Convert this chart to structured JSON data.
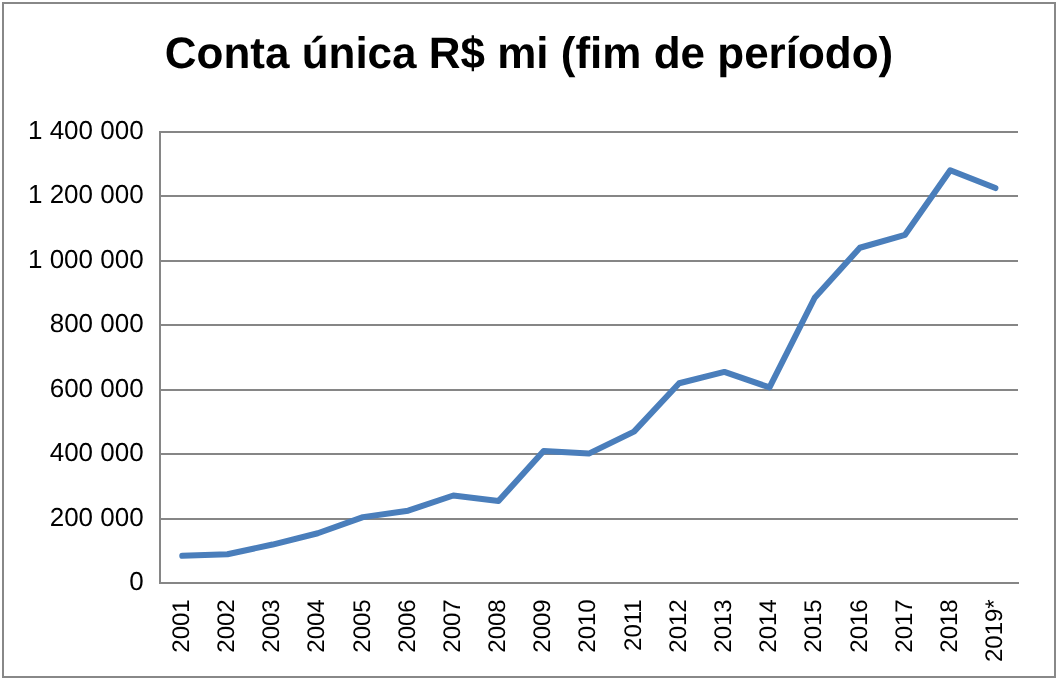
{
  "chart_data": {
    "type": "line",
    "title": "Conta única  R$ mi (fim de período)",
    "categories": [
      "2001",
      "2002",
      "2003",
      "2004",
      "2005",
      "2006",
      "2007",
      "2008",
      "2009",
      "2010",
      "2011",
      "2012",
      "2013",
      "2014",
      "2015",
      "2016",
      "2017",
      "2018",
      "2019*"
    ],
    "series": [
      {
        "color": "#4a7ebb",
        "values": [
          85000,
          90000,
          120000,
          155000,
          205000,
          225000,
          272000,
          255000,
          410000,
          402000,
          470000,
          620000,
          655000,
          607000,
          885000,
          1040000,
          1080000,
          1280000,
          1225000
        ]
      }
    ],
    "ylim": [
      0,
      1400000
    ],
    "yticks": [
      {
        "value": 0,
        "label": "0"
      },
      {
        "value": 200000,
        "label": "200 000"
      },
      {
        "value": 400000,
        "label": "400 000"
      },
      {
        "value": 600000,
        "label": "600 000"
      },
      {
        "value": 800000,
        "label": "800 000"
      },
      {
        "value": 1000000,
        "label": "1 000 000"
      },
      {
        "value": 1200000,
        "label": "1 200 000"
      },
      {
        "value": 1400000,
        "label": "1 400 000"
      }
    ],
    "grid": "y",
    "marker": "none",
    "line_style": "solid"
  }
}
